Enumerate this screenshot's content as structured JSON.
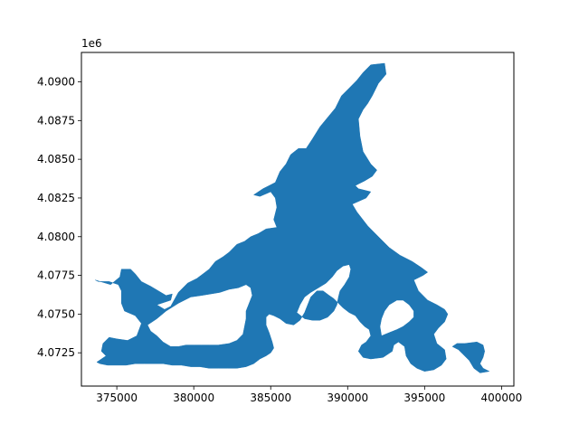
{
  "chart_data": {
    "type": "area",
    "title": "",
    "xlabel": "",
    "ylabel": "",
    "y_offset_label": "1e6",
    "xlim": [
      372700,
      400800
    ],
    "ylim": [
      4070350,
      4091900
    ],
    "xticks": [
      375000,
      380000,
      385000,
      390000,
      395000,
      400000
    ],
    "xtick_labels": [
      "375000",
      "380000",
      "385000",
      "390000",
      "395000",
      "400000"
    ],
    "yticks": [
      4072500,
      4075000,
      4077500,
      4080000,
      4082500,
      4085000,
      4087500,
      4090000
    ],
    "ytick_labels": [
      "4.0725",
      "4.0750",
      "4.0775",
      "4.0800",
      "4.0825",
      "4.0850",
      "4.0875",
      "4.0900"
    ],
    "grid": false,
    "fill_color": "#1f77b4",
    "shapes": [
      {
        "name": "main-polygon",
        "points": [
          [
            373700,
            4071900
          ],
          [
            374300,
            4072300
          ],
          [
            374000,
            4072600
          ],
          [
            374100,
            4073100
          ],
          [
            374500,
            4073500
          ],
          [
            375000,
            4073400
          ],
          [
            375700,
            4073300
          ],
          [
            376300,
            4073600
          ],
          [
            376600,
            4074400
          ],
          [
            376200,
            4074900
          ],
          [
            375500,
            4075200
          ],
          [
            375300,
            4075700
          ],
          [
            375300,
            4076500
          ],
          [
            375100,
            4076900
          ],
          [
            374500,
            4077100
          ],
          [
            373800,
            4077100
          ],
          [
            373600,
            4077200
          ],
          [
            374600,
            4076900
          ],
          [
            375200,
            4077400
          ],
          [
            375300,
            4077900
          ],
          [
            375900,
            4077900
          ],
          [
            376200,
            4077600
          ],
          [
            376600,
            4077100
          ],
          [
            377200,
            4076800
          ],
          [
            377700,
            4076500
          ],
          [
            378200,
            4076200
          ],
          [
            378600,
            4076300
          ],
          [
            378500,
            4075900
          ],
          [
            377600,
            4075600
          ],
          [
            378100,
            4075300
          ],
          [
            378500,
            4075500
          ],
          [
            379000,
            4076400
          ],
          [
            379600,
            4077000
          ],
          [
            380200,
            4077300
          ],
          [
            380600,
            4077600
          ],
          [
            381000,
            4077900
          ],
          [
            381400,
            4078400
          ],
          [
            381900,
            4078700
          ],
          [
            382300,
            4079000
          ],
          [
            382800,
            4079500
          ],
          [
            383300,
            4079700
          ],
          [
            383700,
            4080000
          ],
          [
            384200,
            4080200
          ],
          [
            384700,
            4080500
          ],
          [
            385400,
            4080600
          ],
          [
            385200,
            4081100
          ],
          [
            385400,
            4081900
          ],
          [
            385300,
            4082500
          ],
          [
            385000,
            4082900
          ],
          [
            384300,
            4082600
          ],
          [
            383900,
            4082700
          ],
          [
            384500,
            4083100
          ],
          [
            384900,
            4083300
          ],
          [
            385300,
            4083500
          ],
          [
            385600,
            4084200
          ],
          [
            386000,
            4084700
          ],
          [
            386300,
            4085300
          ],
          [
            386800,
            4085700
          ],
          [
            387300,
            4085700
          ],
          [
            387700,
            4086300
          ],
          [
            388200,
            4087100
          ],
          [
            388700,
            4087700
          ],
          [
            389200,
            4088300
          ],
          [
            389600,
            4089100
          ],
          [
            390100,
            4089600
          ],
          [
            390600,
            4090100
          ],
          [
            391000,
            4090600
          ],
          [
            391500,
            4091100
          ],
          [
            392400,
            4091200
          ],
          [
            392500,
            4090500
          ],
          [
            392000,
            4089900
          ],
          [
            391600,
            4089100
          ],
          [
            391300,
            4088600
          ],
          [
            391000,
            4088200
          ],
          [
            390700,
            4087600
          ],
          [
            390800,
            4086500
          ],
          [
            391000,
            4085500
          ],
          [
            391500,
            4084700
          ],
          [
            391900,
            4084300
          ],
          [
            391600,
            4083900
          ],
          [
            391100,
            4083600
          ],
          [
            390700,
            4083400
          ],
          [
            390500,
            4083300
          ],
          [
            390700,
            4083100
          ],
          [
            391100,
            4083000
          ],
          [
            391500,
            4082900
          ],
          [
            391200,
            4082500
          ],
          [
            390300,
            4082100
          ],
          [
            390600,
            4081600
          ],
          [
            391300,
            4080700
          ],
          [
            392100,
            4079900
          ],
          [
            392700,
            4079300
          ],
          [
            393400,
            4078800
          ],
          [
            394200,
            4078400
          ],
          [
            394800,
            4078000
          ],
          [
            395200,
            4077700
          ],
          [
            394900,
            4077500
          ],
          [
            394500,
            4077300
          ],
          [
            394300,
            4077200
          ],
          [
            394600,
            4076500
          ],
          [
            395200,
            4075900
          ],
          [
            395800,
            4075600
          ],
          [
            396300,
            4075300
          ],
          [
            396500,
            4075000
          ],
          [
            396300,
            4074500
          ],
          [
            395900,
            4074100
          ],
          [
            395600,
            4073700
          ],
          [
            395800,
            4073100
          ],
          [
            396300,
            4072700
          ],
          [
            396400,
            4072100
          ],
          [
            396100,
            4071700
          ],
          [
            395600,
            4071400
          ],
          [
            395000,
            4071300
          ],
          [
            394500,
            4071500
          ],
          [
            394100,
            4071800
          ],
          [
            393800,
            4072300
          ],
          [
            393700,
            4072900
          ],
          [
            393300,
            4073200
          ],
          [
            393000,
            4073000
          ],
          [
            392900,
            4072600
          ],
          [
            392300,
            4072200
          ],
          [
            391500,
            4072100
          ],
          [
            391000,
            4072200
          ],
          [
            390700,
            4072600
          ],
          [
            390900,
            4073000
          ],
          [
            391200,
            4073200
          ],
          [
            391500,
            4073600
          ],
          [
            391400,
            4074000
          ],
          [
            391100,
            4074200
          ],
          [
            390800,
            4074500
          ],
          [
            390500,
            4074900
          ],
          [
            390100,
            4075100
          ],
          [
            389700,
            4075400
          ],
          [
            389400,
            4075700
          ],
          [
            389100,
            4076000
          ],
          [
            388800,
            4076200
          ],
          [
            388400,
            4076500
          ],
          [
            388000,
            4076500
          ],
          [
            387600,
            4076100
          ],
          [
            387400,
            4075600
          ],
          [
            387200,
            4075100
          ],
          [
            386900,
            4074600
          ],
          [
            386500,
            4074300
          ],
          [
            386000,
            4074400
          ],
          [
            385600,
            4074700
          ],
          [
            385200,
            4074900
          ],
          [
            384900,
            4075000
          ],
          [
            384700,
            4074800
          ],
          [
            384700,
            4074300
          ],
          [
            384900,
            4073800
          ],
          [
            385100,
            4073200
          ],
          [
            385200,
            4072800
          ],
          [
            385000,
            4072500
          ],
          [
            384700,
            4072300
          ],
          [
            384300,
            4072100
          ],
          [
            383900,
            4071800
          ],
          [
            383400,
            4071600
          ],
          [
            382800,
            4071500
          ],
          [
            382200,
            4071500
          ],
          [
            381600,
            4071500
          ],
          [
            381000,
            4071500
          ],
          [
            380400,
            4071600
          ],
          [
            379800,
            4071600
          ],
          [
            379200,
            4071700
          ],
          [
            378600,
            4071700
          ],
          [
            378000,
            4071800
          ],
          [
            377400,
            4071800
          ],
          [
            376800,
            4071800
          ],
          [
            376200,
            4071800
          ],
          [
            375600,
            4071700
          ],
          [
            375000,
            4071700
          ],
          [
            374400,
            4071700
          ],
          [
            373900,
            4071800
          ]
        ]
      },
      {
        "name": "east-island",
        "points": [
          [
            397600,
            4073100
          ],
          [
            398400,
            4073200
          ],
          [
            398800,
            4073000
          ],
          [
            398900,
            4072600
          ],
          [
            398800,
            4072200
          ],
          [
            398600,
            4071800
          ],
          [
            398800,
            4071500
          ],
          [
            399200,
            4071300
          ],
          [
            398600,
            4071200
          ],
          [
            398200,
            4071500
          ],
          [
            397900,
            4072000
          ],
          [
            397500,
            4072400
          ],
          [
            397200,
            4072700
          ],
          [
            396800,
            4072900
          ],
          [
            397100,
            4073100
          ]
        ]
      }
    ],
    "holes": [
      {
        "name": "west-lake",
        "points": [
          [
            377000,
            4074300
          ],
          [
            377600,
            4074700
          ],
          [
            378200,
            4075200
          ],
          [
            379000,
            4075700
          ],
          [
            379800,
            4076100
          ],
          [
            380500,
            4076200
          ],
          [
            381100,
            4076300
          ],
          [
            381700,
            4076400
          ],
          [
            382300,
            4076600
          ],
          [
            382900,
            4076700
          ],
          [
            383400,
            4076900
          ],
          [
            383700,
            4076700
          ],
          [
            383800,
            4076200
          ],
          [
            383600,
            4075700
          ],
          [
            383400,
            4075200
          ],
          [
            383400,
            4074700
          ],
          [
            383300,
            4074200
          ],
          [
            383200,
            4073700
          ],
          [
            382800,
            4073300
          ],
          [
            382300,
            4073100
          ],
          [
            381600,
            4073000
          ],
          [
            381000,
            4073000
          ],
          [
            380500,
            4073000
          ],
          [
            380000,
            4073000
          ],
          [
            379500,
            4073000
          ],
          [
            379000,
            4072900
          ],
          [
            378500,
            4072900
          ],
          [
            378000,
            4073200
          ],
          [
            377600,
            4073600
          ],
          [
            377200,
            4073900
          ]
        ]
      },
      {
        "name": "central-lake",
        "points": [
          [
            386700,
            4075100
          ],
          [
            386900,
            4075600
          ],
          [
            387200,
            4076100
          ],
          [
            387600,
            4076400
          ],
          [
            388100,
            4076700
          ],
          [
            388600,
            4077000
          ],
          [
            389000,
            4077400
          ],
          [
            389300,
            4077800
          ],
          [
            389700,
            4078100
          ],
          [
            390100,
            4078200
          ],
          [
            390200,
            4077900
          ],
          [
            390100,
            4077400
          ],
          [
            389800,
            4076900
          ],
          [
            389500,
            4076500
          ],
          [
            389400,
            4076100
          ],
          [
            389300,
            4075600
          ],
          [
            389100,
            4075200
          ],
          [
            388700,
            4074800
          ],
          [
            388200,
            4074600
          ],
          [
            387700,
            4074600
          ],
          [
            387200,
            4074700
          ]
        ]
      },
      {
        "name": "bay-hole",
        "points": [
          [
            392200,
            4073600
          ],
          [
            392700,
            4073800
          ],
          [
            393200,
            4074000
          ],
          [
            393600,
            4074200
          ],
          [
            394000,
            4074500
          ],
          [
            394300,
            4074800
          ],
          [
            394300,
            4075200
          ],
          [
            394000,
            4075600
          ],
          [
            393600,
            4075900
          ],
          [
            393200,
            4075900
          ],
          [
            392700,
            4075600
          ],
          [
            392400,
            4075200
          ],
          [
            392200,
            4074700
          ],
          [
            392100,
            4074200
          ]
        ]
      }
    ]
  }
}
